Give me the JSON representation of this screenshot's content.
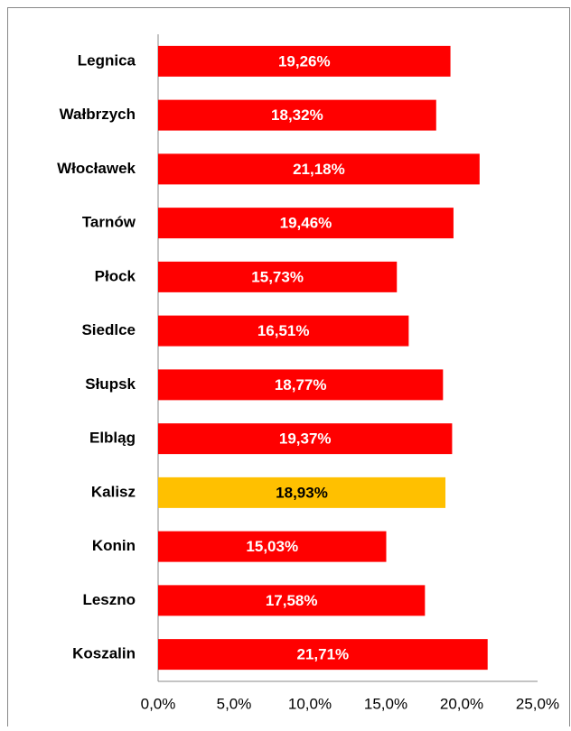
{
  "chart_data": {
    "type": "barh",
    "categories": [
      "Legnica",
      "Wałbrzych",
      "Włocławek",
      "Tarnów",
      "Płock",
      "Siedlce",
      "Słupsk",
      "Elbląg",
      "Kalisz",
      "Konin",
      "Leszno",
      "Koszalin"
    ],
    "values": [
      19.26,
      18.32,
      21.18,
      19.46,
      15.73,
      16.51,
      18.77,
      19.37,
      18.93,
      15.03,
      17.58,
      21.71
    ],
    "value_labels": [
      "19,26%",
      "18,32%",
      "21,18%",
      "19,46%",
      "15,73%",
      "16,51%",
      "18,77%",
      "19,37%",
      "18,93%",
      "15,03%",
      "17,58%",
      "21,71%"
    ],
    "colors": [
      "#ff0000",
      "#ff0000",
      "#ff0000",
      "#ff0000",
      "#ff0000",
      "#ff0000",
      "#ff0000",
      "#ff0000",
      "#ffc000",
      "#ff0000",
      "#ff0000",
      "#ff0000"
    ],
    "xlim": [
      0,
      25
    ],
    "xticks": [
      {
        "value": 0,
        "label": "0,0%"
      },
      {
        "value": 5,
        "label": "5,0%"
      },
      {
        "value": 10,
        "label": "10,0%"
      },
      {
        "value": 15,
        "label": "15,0%"
      },
      {
        "value": 20,
        "label": "20,0%"
      },
      {
        "value": 25,
        "label": "25,0%"
      }
    ],
    "grid": false
  }
}
